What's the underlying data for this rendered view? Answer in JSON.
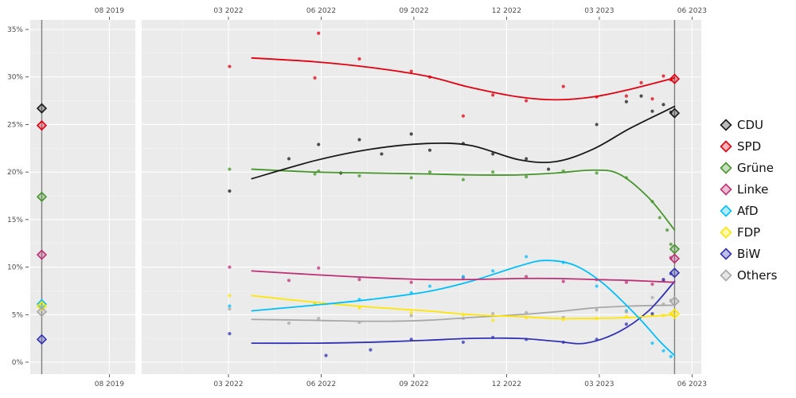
{
  "chart_data": {
    "type": "line",
    "description": "Opinion polling trend chart with two time panels, smoothed party trend lines, individual poll dots and election-result diamond markers",
    "y_axis": {
      "min": 0,
      "max": 35,
      "tick_step": 5,
      "tick_labels": [
        "0%",
        "5%",
        "10%",
        "15%",
        "20%",
        "25%",
        "30%",
        "35%"
      ]
    },
    "panels": [
      {
        "id": "election-2019",
        "domain": [
          2019.37,
          2019.653
        ],
        "ticks": [
          {
            "v": 2019.583,
            "label": "08 2019"
          }
        ],
        "minor_ticks": [
          2019.458
        ],
        "election_line_x": 2019.401
      },
      {
        "id": "campaign-2022-2023",
        "domain": [
          2021.933,
          2023.442
        ],
        "ticks": [
          {
            "v": 2022.167,
            "label": "03 2022"
          },
          {
            "v": 2022.417,
            "label": "06 2022"
          },
          {
            "v": 2022.667,
            "label": "09 2022"
          },
          {
            "v": 2022.917,
            "label": "12 2022"
          },
          {
            "v": 2023.167,
            "label": "03 2023"
          },
          {
            "v": 2023.417,
            "label": "06 2023"
          }
        ],
        "minor_ticks": [
          2022.042,
          2022.292,
          2022.542,
          2022.792,
          2023.042,
          2023.292
        ],
        "election_line_x": 2023.37
      }
    ],
    "series": [
      {
        "id": "cdu",
        "label": "CDU",
        "color": "#1A1A1A",
        "election_2019": 26.7,
        "election_2023": 26.2,
        "trend": [
          [
            2022.23,
            19.3
          ],
          [
            2022.4,
            21.2
          ],
          [
            2022.55,
            22.4
          ],
          [
            2022.7,
            23.0
          ],
          [
            2022.82,
            22.8
          ],
          [
            2022.95,
            21.3
          ],
          [
            2023.05,
            21.1
          ],
          [
            2023.15,
            22.4
          ],
          [
            2023.25,
            24.6
          ],
          [
            2023.37,
            26.9
          ]
        ],
        "polls": [
          [
            2022.17,
            18.0
          ],
          [
            2022.33,
            21.4
          ],
          [
            2022.41,
            22.9
          ],
          [
            2022.47,
            19.9
          ],
          [
            2022.52,
            23.4
          ],
          [
            2022.58,
            21.9
          ],
          [
            2022.66,
            24.0
          ],
          [
            2022.71,
            22.3
          ],
          [
            2022.8,
            23.0
          ],
          [
            2022.88,
            21.9
          ],
          [
            2022.97,
            21.4
          ],
          [
            2023.03,
            20.3
          ],
          [
            2023.16,
            25.0
          ],
          [
            2023.24,
            27.4
          ],
          [
            2023.28,
            28.0
          ],
          [
            2023.31,
            26.4
          ],
          [
            2023.34,
            27.1
          ],
          [
            2023.36,
            26.3
          ]
        ]
      },
      {
        "id": "spd",
        "label": "SPD",
        "color": "#E3000F",
        "election_2019": 24.9,
        "election_2023": 29.8,
        "trend": [
          [
            2022.23,
            32.0
          ],
          [
            2022.4,
            31.6
          ],
          [
            2022.55,
            31.0
          ],
          [
            2022.7,
            30.1
          ],
          [
            2022.82,
            28.9
          ],
          [
            2022.95,
            27.9
          ],
          [
            2023.05,
            27.6
          ],
          [
            2023.15,
            27.9
          ],
          [
            2023.25,
            28.7
          ],
          [
            2023.37,
            29.9
          ]
        ],
        "polls": [
          [
            2022.17,
            31.1
          ],
          [
            2022.4,
            29.9
          ],
          [
            2022.41,
            34.6
          ],
          [
            2022.52,
            31.9
          ],
          [
            2022.66,
            30.6
          ],
          [
            2022.71,
            30.0
          ],
          [
            2022.8,
            25.9
          ],
          [
            2022.88,
            28.1
          ],
          [
            2022.97,
            27.5
          ],
          [
            2023.07,
            29.0
          ],
          [
            2023.16,
            27.9
          ],
          [
            2023.24,
            28.0
          ],
          [
            2023.28,
            29.4
          ],
          [
            2023.31,
            27.7
          ],
          [
            2023.34,
            30.1
          ],
          [
            2023.36,
            29.7
          ]
        ]
      },
      {
        "id": "gruene",
        "label": "Grüne",
        "color": "#46962B",
        "election_2019": 17.4,
        "election_2023": 11.9,
        "trend": [
          [
            2022.23,
            20.3
          ],
          [
            2022.4,
            20.0
          ],
          [
            2022.55,
            19.9
          ],
          [
            2022.7,
            19.8
          ],
          [
            2022.82,
            19.7
          ],
          [
            2022.95,
            19.7
          ],
          [
            2023.05,
            19.9
          ],
          [
            2023.15,
            20.2
          ],
          [
            2023.22,
            19.8
          ],
          [
            2023.3,
            17.3
          ],
          [
            2023.37,
            13.9
          ]
        ],
        "polls": [
          [
            2022.17,
            20.3
          ],
          [
            2022.4,
            19.8
          ],
          [
            2022.41,
            20.1
          ],
          [
            2022.52,
            19.6
          ],
          [
            2022.66,
            19.4
          ],
          [
            2022.71,
            20.0
          ],
          [
            2022.8,
            19.2
          ],
          [
            2022.88,
            20.0
          ],
          [
            2022.97,
            19.5
          ],
          [
            2023.07,
            20.1
          ],
          [
            2023.16,
            19.9
          ],
          [
            2023.24,
            19.4
          ],
          [
            2023.31,
            16.9
          ],
          [
            2023.33,
            15.2
          ],
          [
            2023.35,
            13.9
          ],
          [
            2023.36,
            12.4
          ]
        ]
      },
      {
        "id": "linke",
        "label": "Linke",
        "color": "#BE3075",
        "election_2019": 11.3,
        "election_2023": 10.9,
        "trend": [
          [
            2022.23,
            9.6
          ],
          [
            2022.4,
            9.2
          ],
          [
            2022.55,
            8.9
          ],
          [
            2022.7,
            8.7
          ],
          [
            2022.82,
            8.7
          ],
          [
            2022.95,
            8.8
          ],
          [
            2023.05,
            8.8
          ],
          [
            2023.15,
            8.7
          ],
          [
            2023.25,
            8.6
          ],
          [
            2023.37,
            8.4
          ]
        ],
        "polls": [
          [
            2022.17,
            10.0
          ],
          [
            2022.33,
            8.6
          ],
          [
            2022.41,
            9.9
          ],
          [
            2022.52,
            8.7
          ],
          [
            2022.66,
            8.4
          ],
          [
            2022.8,
            8.9
          ],
          [
            2022.97,
            9.0
          ],
          [
            2023.07,
            8.5
          ],
          [
            2023.16,
            8.7
          ],
          [
            2023.24,
            8.4
          ],
          [
            2023.31,
            8.2
          ],
          [
            2023.34,
            8.6
          ],
          [
            2023.36,
            11.0
          ]
        ]
      },
      {
        "id": "afd",
        "label": "AfD",
        "color": "#00BFFF",
        "election_2019": 6.1,
        "election_2023": null,
        "trend": [
          [
            2022.23,
            5.4
          ],
          [
            2022.4,
            6.0
          ],
          [
            2022.55,
            6.6
          ],
          [
            2022.7,
            7.4
          ],
          [
            2022.82,
            8.5
          ],
          [
            2022.95,
            10.1
          ],
          [
            2023.02,
            10.7
          ],
          [
            2023.1,
            10.2
          ],
          [
            2023.18,
            8.2
          ],
          [
            2023.27,
            4.8
          ],
          [
            2023.33,
            2.2
          ],
          [
            2023.37,
            0.7
          ]
        ],
        "polls": [
          [
            2022.17,
            5.9
          ],
          [
            2022.4,
            6.2
          ],
          [
            2022.52,
            6.6
          ],
          [
            2022.66,
            7.3
          ],
          [
            2022.71,
            8.0
          ],
          [
            2022.8,
            9.0
          ],
          [
            2022.88,
            9.6
          ],
          [
            2022.97,
            11.1
          ],
          [
            2023.07,
            10.5
          ],
          [
            2023.16,
            8.0
          ],
          [
            2023.24,
            5.4
          ],
          [
            2023.31,
            2.0
          ],
          [
            2023.34,
            1.2
          ],
          [
            2023.36,
            0.6
          ]
        ]
      },
      {
        "id": "fdp",
        "label": "FDP",
        "color": "#FFE600",
        "election_2019": 5.9,
        "election_2023": 5.1,
        "trend": [
          [
            2022.23,
            7.0
          ],
          [
            2022.4,
            6.3
          ],
          [
            2022.55,
            5.8
          ],
          [
            2022.7,
            5.4
          ],
          [
            2022.82,
            5.0
          ],
          [
            2022.95,
            4.8
          ],
          [
            2023.05,
            4.6
          ],
          [
            2023.15,
            4.6
          ],
          [
            2023.25,
            4.7
          ],
          [
            2023.37,
            5.0
          ]
        ],
        "polls": [
          [
            2022.17,
            7.0
          ],
          [
            2022.4,
            6.1
          ],
          [
            2022.52,
            5.7
          ],
          [
            2022.66,
            5.2
          ],
          [
            2022.8,
            5.0
          ],
          [
            2022.88,
            4.4
          ],
          [
            2022.97,
            4.7
          ],
          [
            2023.07,
            4.5
          ],
          [
            2023.16,
            4.6
          ],
          [
            2023.24,
            4.8
          ],
          [
            2023.31,
            5.0
          ],
          [
            2023.34,
            4.9
          ],
          [
            2023.36,
            5.1
          ]
        ]
      },
      {
        "id": "biw",
        "label": "BiW",
        "color": "#3232B4",
        "election_2019": 2.4,
        "election_2023": 9.4,
        "trend": [
          [
            2022.23,
            2.0
          ],
          [
            2022.4,
            2.0
          ],
          [
            2022.55,
            2.1
          ],
          [
            2022.7,
            2.3
          ],
          [
            2022.82,
            2.5
          ],
          [
            2022.95,
            2.5
          ],
          [
            2023.05,
            2.2
          ],
          [
            2023.13,
            2.0
          ],
          [
            2023.22,
            3.2
          ],
          [
            2023.3,
            5.4
          ],
          [
            2023.37,
            8.5
          ]
        ],
        "polls": [
          [
            2022.17,
            3.0
          ],
          [
            2022.43,
            0.7
          ],
          [
            2022.55,
            1.3
          ],
          [
            2022.66,
            2.4
          ],
          [
            2022.8,
            2.1
          ],
          [
            2022.88,
            2.6
          ],
          [
            2022.97,
            2.4
          ],
          [
            2023.07,
            2.1
          ],
          [
            2023.16,
            2.4
          ],
          [
            2023.24,
            4.0
          ],
          [
            2023.31,
            5.1
          ],
          [
            2023.34,
            8.7
          ],
          [
            2023.36,
            9.3
          ]
        ]
      },
      {
        "id": "others",
        "label": "Others",
        "color": "#A8A8A8",
        "election_2019": 5.3,
        "election_2023": 6.4,
        "trend": [
          [
            2022.23,
            4.5
          ],
          [
            2022.4,
            4.4
          ],
          [
            2022.55,
            4.3
          ],
          [
            2022.7,
            4.4
          ],
          [
            2022.82,
            4.7
          ],
          [
            2022.95,
            5.0
          ],
          [
            2023.05,
            5.3
          ],
          [
            2023.15,
            5.7
          ],
          [
            2023.25,
            5.9
          ],
          [
            2023.37,
            6.0
          ]
        ],
        "polls": [
          [
            2022.17,
            5.6
          ],
          [
            2022.33,
            4.1
          ],
          [
            2022.41,
            4.6
          ],
          [
            2022.52,
            4.2
          ],
          [
            2022.66,
            4.9
          ],
          [
            2022.8,
            4.6
          ],
          [
            2022.88,
            5.1
          ],
          [
            2022.97,
            5.2
          ],
          [
            2023.07,
            4.7
          ],
          [
            2023.16,
            5.5
          ],
          [
            2023.24,
            5.3
          ],
          [
            2023.31,
            6.8
          ],
          [
            2023.34,
            6.1
          ],
          [
            2023.36,
            6.5
          ]
        ]
      }
    ],
    "legend": {
      "position": "right",
      "items": [
        "CDU",
        "SPD",
        "Grüne",
        "Linke",
        "AfD",
        "FDP",
        "BiW",
        "Others"
      ]
    },
    "style": {
      "panel_bg": "#EBEBEB",
      "grid_major": "#FFFFFF",
      "grid_minor": "#F5F5F5",
      "axis_text": "#4D4D4D",
      "axis_tick": "#333333",
      "election_line": "#7F7F7F"
    }
  }
}
